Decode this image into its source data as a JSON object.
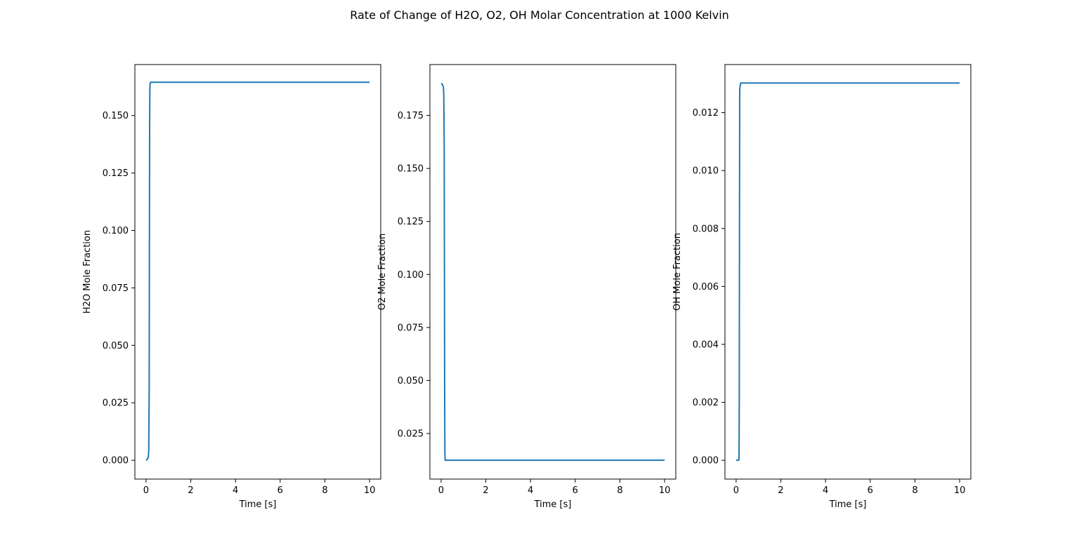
{
  "figure": {
    "title": "Rate of Change of H2O, O2, OH Molar Concentration at 1000 Kelvin"
  },
  "chart_data": [
    {
      "type": "line",
      "xlabel": "Time [s]",
      "ylabel": "H2O Mole Fraction",
      "xlim": [
        -0.5,
        10.5
      ],
      "ylim": [
        -0.0082,
        0.1722
      ],
      "xticks": [
        0,
        2,
        4,
        6,
        8,
        10
      ],
      "xtick_labels": [
        "0",
        "2",
        "4",
        "6",
        "8",
        "10"
      ],
      "yticks": [
        0.0,
        0.025,
        0.05,
        0.075,
        0.1,
        0.125,
        0.15
      ],
      "ytick_labels": [
        "0.000",
        "0.025",
        "0.050",
        "0.075",
        "0.100",
        "0.125",
        "0.150"
      ],
      "grid": false,
      "color": "#1f77b4",
      "series": [
        {
          "x": [
            0,
            0.05,
            0.1,
            0.12,
            0.14,
            0.15,
            0.16,
            0.17,
            0.18,
            0.2,
            1,
            2,
            4,
            6,
            8,
            10
          ],
          "y": [
            0.0,
            0.0003,
            0.0012,
            0.004,
            0.03,
            0.09,
            0.145,
            0.161,
            0.164,
            0.1645,
            0.1645,
            0.1645,
            0.1645,
            0.1645,
            0.1645,
            0.1645
          ]
        }
      ]
    },
    {
      "type": "line",
      "xlabel": "Time [s]",
      "ylabel": "O2 Mole Fraction",
      "xlim": [
        -0.5,
        10.5
      ],
      "ylim": [
        0.0035,
        0.199
      ],
      "xticks": [
        0,
        2,
        4,
        6,
        8,
        10
      ],
      "xtick_labels": [
        "0",
        "2",
        "4",
        "6",
        "8",
        "10"
      ],
      "yticks": [
        0.025,
        0.05,
        0.075,
        0.1,
        0.125,
        0.15,
        0.175
      ],
      "ytick_labels": [
        "0.025",
        "0.050",
        "0.075",
        "0.100",
        "0.125",
        "0.150",
        "0.175"
      ],
      "grid": false,
      "color": "#1f77b4",
      "series": [
        {
          "x": [
            0,
            0.05,
            0.1,
            0.12,
            0.14,
            0.15,
            0.16,
            0.17,
            0.18,
            0.2,
            1,
            2,
            4,
            6,
            8,
            10
          ],
          "y": [
            0.19,
            0.1898,
            0.1885,
            0.185,
            0.16,
            0.1,
            0.04,
            0.016,
            0.0125,
            0.0124,
            0.0124,
            0.0124,
            0.0124,
            0.0124,
            0.0124,
            0.0124
          ]
        }
      ]
    },
    {
      "type": "line",
      "xlabel": "Time [s]",
      "ylabel": "OH Mole Fraction",
      "xlim": [
        -0.5,
        10.5
      ],
      "ylim": [
        -0.00065,
        0.01366
      ],
      "xticks": [
        0,
        2,
        4,
        6,
        8,
        10
      ],
      "xtick_labels": [
        "0",
        "2",
        "4",
        "6",
        "8",
        "10"
      ],
      "yticks": [
        0.0,
        0.002,
        0.004,
        0.006,
        0.008,
        0.01,
        0.012
      ],
      "ytick_labels": [
        "0.000",
        "0.002",
        "0.004",
        "0.006",
        "0.008",
        "0.010",
        "0.012"
      ],
      "grid": false,
      "color": "#1f77b4",
      "series": [
        {
          "x": [
            0,
            0.05,
            0.1,
            0.13,
            0.14,
            0.15,
            0.16,
            0.2,
            1,
            2,
            4,
            6,
            8,
            10
          ],
          "y": [
            0.0,
            0.0,
            0.0,
            2e-05,
            0.002,
            0.008,
            0.0128,
            0.01302,
            0.01302,
            0.01302,
            0.01302,
            0.01302,
            0.01302,
            0.01302
          ]
        }
      ]
    }
  ]
}
